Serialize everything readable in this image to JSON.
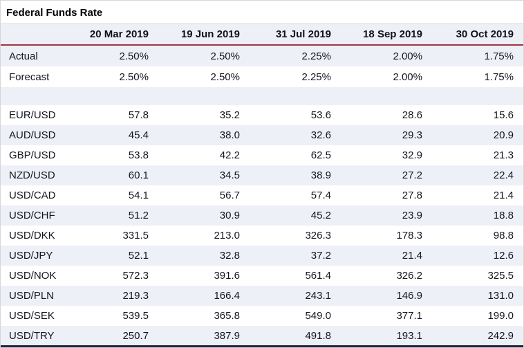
{
  "title": "Federal Funds Rate",
  "colors": {
    "header_separator_red": "#a03540",
    "row_tint": "#edf0f7",
    "bottom_border_dark": "#23233b",
    "text": "#15151f"
  },
  "chart_data": {
    "type": "table",
    "title": "Federal Funds Rate",
    "columns": [
      "20 Mar 2019",
      "19 Jun 2019",
      "31 Jul 2019",
      "18 Sep 2019",
      "30 Oct 2019"
    ],
    "rate_rows": [
      {
        "label": "Actual",
        "values": [
          "2.50%",
          "2.50%",
          "2.25%",
          "2.00%",
          "1.75%"
        ]
      },
      {
        "label": "Forecast",
        "values": [
          "2.50%",
          "2.50%",
          "2.25%",
          "2.00%",
          "1.75%"
        ]
      }
    ],
    "pair_rows": [
      {
        "label": "EUR/USD",
        "values": [
          "57.8",
          "35.2",
          "53.6",
          "28.6",
          "15.6"
        ]
      },
      {
        "label": "AUD/USD",
        "values": [
          "45.4",
          "38.0",
          "32.6",
          "29.3",
          "20.9"
        ]
      },
      {
        "label": "GBP/USD",
        "values": [
          "53.8",
          "42.2",
          "62.5",
          "32.9",
          "21.3"
        ]
      },
      {
        "label": "NZD/USD",
        "values": [
          "60.1",
          "34.5",
          "38.9",
          "27.2",
          "22.4"
        ]
      },
      {
        "label": "USD/CAD",
        "values": [
          "54.1",
          "56.7",
          "57.4",
          "27.8",
          "21.4"
        ]
      },
      {
        "label": "USD/CHF",
        "values": [
          "51.2",
          "30.9",
          "45.2",
          "23.9",
          "18.8"
        ]
      },
      {
        "label": "USD/DKK",
        "values": [
          "331.5",
          "213.0",
          "326.3",
          "178.3",
          "98.8"
        ]
      },
      {
        "label": "USD/JPY",
        "values": [
          "52.1",
          "32.8",
          "37.2",
          "21.4",
          "12.6"
        ]
      },
      {
        "label": "USD/NOK",
        "values": [
          "572.3",
          "391.6",
          "561.4",
          "326.2",
          "325.5"
        ]
      },
      {
        "label": "USD/PLN",
        "values": [
          "219.3",
          "166.4",
          "243.1",
          "146.9",
          "131.0"
        ]
      },
      {
        "label": "USD/SEK",
        "values": [
          "539.5",
          "365.8",
          "549.0",
          "377.1",
          "199.0"
        ]
      },
      {
        "label": "USD/TRY",
        "values": [
          "250.7",
          "387.9",
          "491.8",
          "193.1",
          "242.9"
        ]
      }
    ]
  }
}
